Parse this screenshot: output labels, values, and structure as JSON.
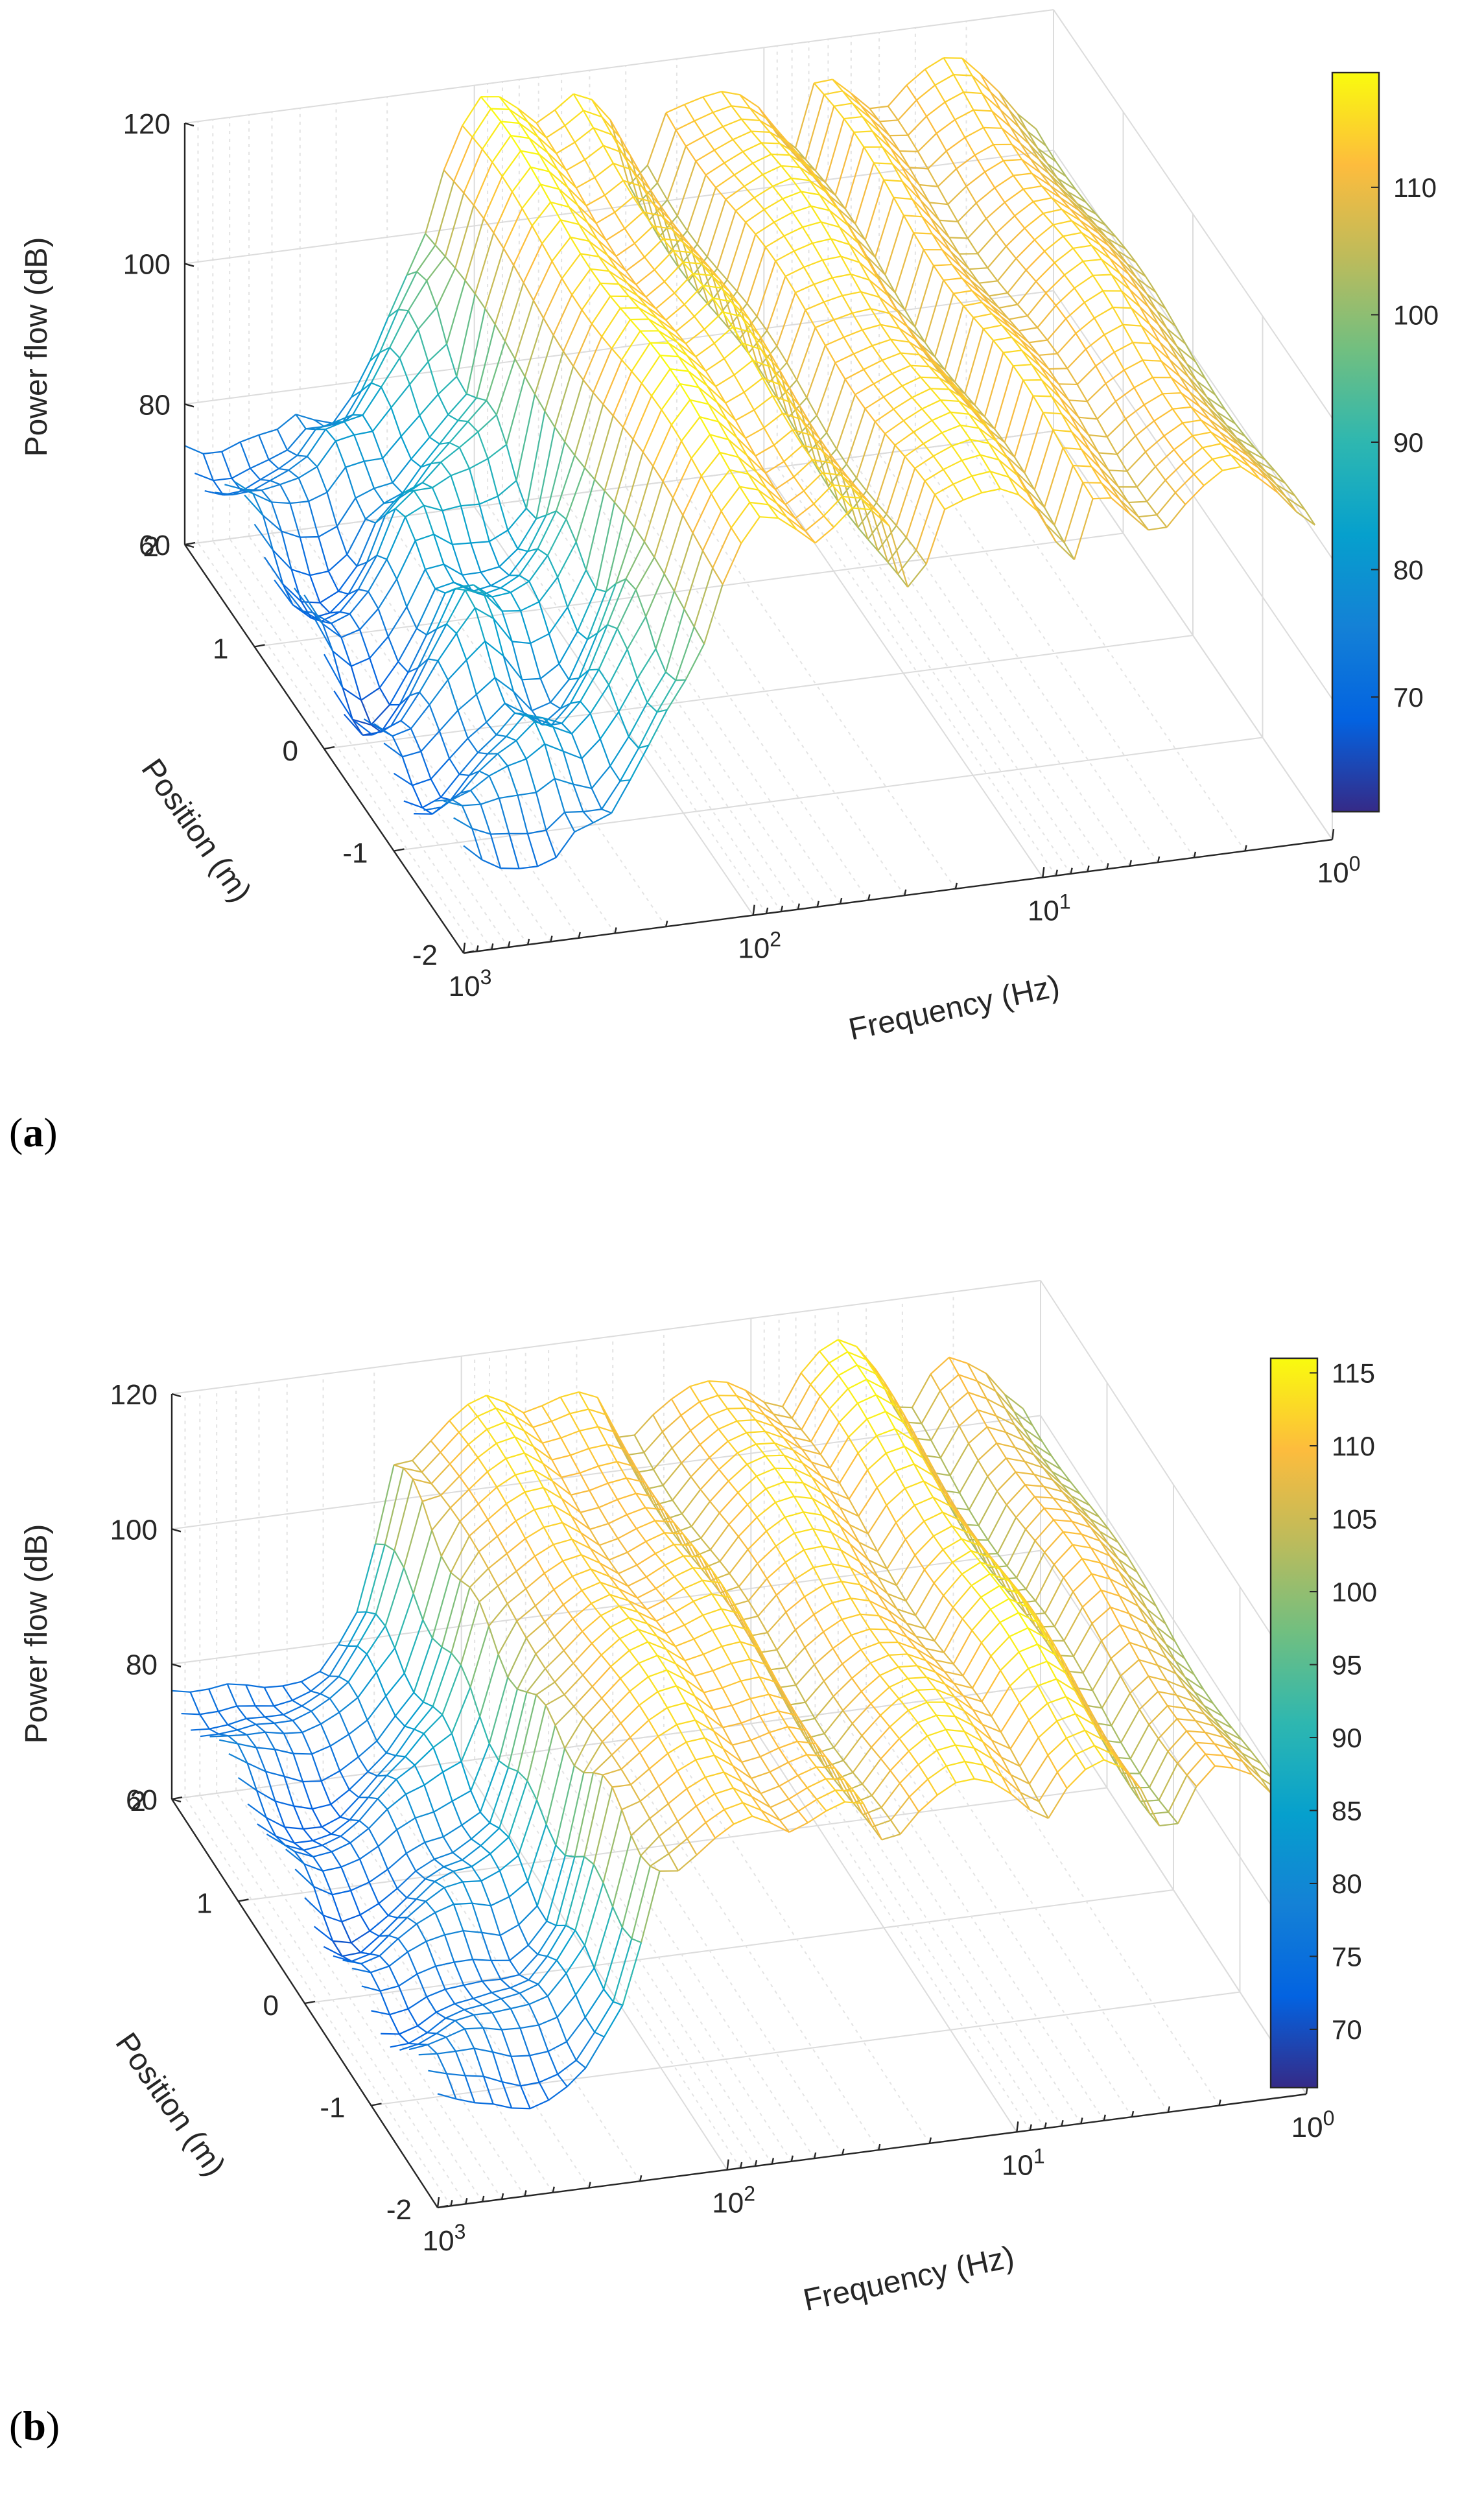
{
  "figure": {
    "panels": [
      {
        "open": "(",
        "letter": "a",
        "close": ")"
      },
      {
        "open": "(",
        "letter": "b",
        "close": ")"
      }
    ]
  },
  "chart_data": [
    {
      "type": "surface",
      "panel": "a",
      "zlabel": "Power flow (dB)",
      "xlabel": "Frequency (Hz)",
      "ylabel": "Position (m)",
      "x_scale": "log",
      "x_range": [
        1,
        1000
      ],
      "x_ticks": [
        1,
        10,
        100,
        1000
      ],
      "x_tick_labels": [
        "10",
        "10",
        "10",
        "10"
      ],
      "x_tick_exps": [
        "0",
        "1",
        "2",
        "3"
      ],
      "y_range": [
        -2,
        2
      ],
      "y_ticks": [
        2,
        1,
        0,
        -1,
        -2
      ],
      "y_tick_labels": [
        "2",
        "1",
        "0",
        "-1",
        "-2"
      ],
      "z_range": [
        60,
        120
      ],
      "z_ticks": [
        60,
        80,
        100,
        120
      ],
      "z_tick_labels": [
        "60",
        "80",
        "100",
        "120"
      ],
      "colorbar": {
        "range": [
          61,
          119
        ],
        "ticks": [
          70,
          80,
          90,
          100,
          110
        ],
        "tick_labels": [
          "70",
          "80",
          "90",
          "100",
          "110"
        ]
      },
      "grid": true,
      "profile_freq_hz": [
        1.2,
        1.6,
        2.2,
        3.0,
        4.0,
        5.2,
        6.5,
        8.0,
        10,
        13,
        17,
        22,
        28,
        35,
        45,
        60,
        80,
        100,
        130,
        170,
        220,
        300,
        400,
        500,
        650,
        800,
        1000
      ],
      "profile_db": [
        104,
        110,
        115,
        112,
        107,
        112,
        116,
        104,
        112,
        116,
        115,
        113,
        100,
        114,
        116,
        112,
        117,
        118,
        108,
        92,
        85,
        80,
        82,
        76,
        72,
        70,
        74
      ],
      "ripple_db": 6
    },
    {
      "type": "surface",
      "panel": "b",
      "zlabel": "Power flow (dB)",
      "xlabel": "Frequency (Hz)",
      "ylabel": "Position (m)",
      "x_scale": "log",
      "x_range": [
        1,
        1000
      ],
      "x_ticks": [
        1,
        10,
        100,
        1000
      ],
      "x_tick_labels": [
        "10",
        "10",
        "10",
        "10"
      ],
      "x_tick_exps": [
        "0",
        "1",
        "2",
        "3"
      ],
      "y_range": [
        -2,
        2
      ],
      "y_ticks": [
        2,
        1,
        0,
        -1,
        -2
      ],
      "y_tick_labels": [
        "2",
        "1",
        "0",
        "-1",
        "-2"
      ],
      "z_range": [
        60,
        120
      ],
      "z_ticks": [
        60,
        80,
        100,
        120
      ],
      "z_tick_labels": [
        "60",
        "80",
        "100",
        "120"
      ],
      "colorbar": {
        "range": [
          66,
          116
        ],
        "ticks": [
          70,
          75,
          80,
          85,
          90,
          95,
          100,
          105,
          110,
          115
        ],
        "tick_labels": [
          "70",
          "75",
          "80",
          "85",
          "90",
          "95",
          "100",
          "105",
          "110",
          "115"
        ]
      },
      "grid": true,
      "profile_freq_hz": [
        1.2,
        1.6,
        2.2,
        3.0,
        4.0,
        5.2,
        6.5,
        8.0,
        10,
        13,
        17,
        22,
        28,
        35,
        45,
        60,
        80,
        100,
        130,
        170,
        220,
        300,
        400,
        500,
        650,
        800,
        1000
      ],
      "profile_db": [
        102,
        108,
        110,
        100,
        112,
        115,
        112,
        106,
        110,
        113,
        112,
        108,
        103,
        112,
        111,
        109,
        113,
        112,
        108,
        104,
        86,
        80,
        78,
        76,
        75,
        74,
        76
      ],
      "ripple_db": 4
    }
  ]
}
